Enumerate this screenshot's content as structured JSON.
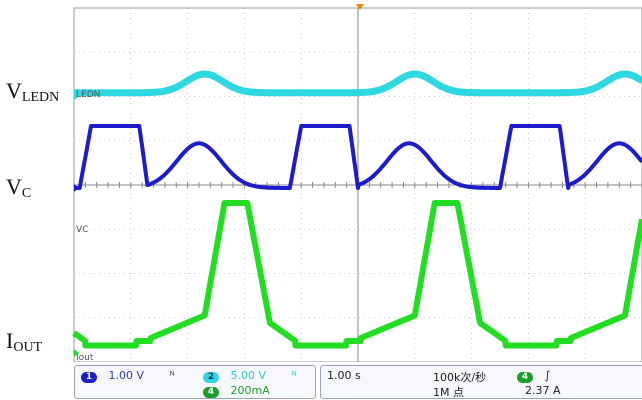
{
  "signal_labels": {
    "vledn": {
      "main": "V",
      "sub": "LEDN"
    },
    "vc": {
      "main": "V",
      "sub": "C"
    },
    "iout": {
      "main": "I",
      "sub": "OUT"
    }
  },
  "trace_tags": {
    "ledn": "LEDN",
    "vc": "VC",
    "iout": "Iout"
  },
  "status_bar": {
    "ch1": {
      "num": "1",
      "scale": "1.00 V",
      "coupling": "ᴺ"
    },
    "ch2": {
      "num": "2",
      "scale": "5.00 V",
      "coupling": "ᴺ"
    },
    "ch4": {
      "num": "4",
      "scale": "200mA"
    },
    "timebase": "1.00 s",
    "sample_rate": "100k次/秒",
    "record_length": "1M 点",
    "trigger_ch": "4",
    "trigger_slope": "∫",
    "trigger_level": "2.37 A"
  },
  "colors": {
    "ch1": "#1c1ccc",
    "ch2": "#2fd8e0",
    "ch4": "#22dd22",
    "grid": "#c0c0c0",
    "trigger_marker": "#e88a00"
  },
  "chart_data": {
    "type": "line",
    "title": "",
    "xlabel": "",
    "ylabel": "",
    "grid": true,
    "x_divisions": 10,
    "y_divisions": 8,
    "x_unit_per_div": "1.00 s",
    "x": [
      0,
      0.5,
      0.8,
      1.0,
      1.5,
      2.0,
      2.5,
      3.0,
      3.5,
      4.0,
      4.5,
      5.0,
      5.5,
      6.0,
      6.5,
      7.0,
      7.5,
      8.0,
      8.5,
      9.0,
      9.5,
      10.0
    ],
    "series": [
      {
        "name": "VLEDN",
        "channel": "2",
        "period_divs": 3.7,
        "pattern": "smooth hump",
        "description_values": [
          0.0,
          0.0,
          0.1,
          0.3,
          0.9,
          1.0,
          0.5,
          0.1,
          0.0,
          0.3,
          0.9,
          1.0,
          0.5,
          0.1,
          0.0,
          0.3,
          0.9,
          1.0,
          0.5,
          0.1,
          0.0,
          0.0
        ]
      },
      {
        "name": "VC",
        "channel": "1",
        "period_divs": 3.7,
        "pattern": "square-plus-hump",
        "description_values": [
          1.0,
          1.0,
          1.0,
          0.0,
          0.9,
          0.6,
          0.0,
          0.8,
          1.0,
          1.0,
          0.0,
          0.9,
          0.5,
          0.0,
          0.9,
          1.0,
          1.0,
          0.0,
          0.9,
          0.5,
          0.0,
          1.0
        ]
      },
      {
        "name": "IOUT",
        "channel": "4",
        "period_divs": 3.7,
        "pattern": "tall pulse",
        "description_values": [
          0.05,
          0.05,
          0.1,
          0.25,
          0.6,
          1.0,
          1.0,
          0.3,
          0.05,
          0.1,
          0.3,
          1.0,
          1.0,
          0.3,
          0.05,
          0.1,
          0.3,
          1.0,
          1.0,
          0.3,
          0.05,
          0.05
        ]
      }
    ]
  }
}
